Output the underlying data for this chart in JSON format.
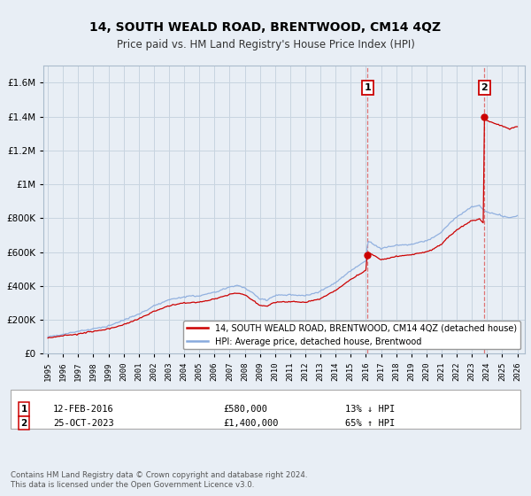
{
  "title": "14, SOUTH WEALD ROAD, BRENTWOOD, CM14 4QZ",
  "subtitle": "Price paid vs. HM Land Registry's House Price Index (HPI)",
  "ytick_values": [
    0,
    200000,
    400000,
    600000,
    800000,
    1000000,
    1200000,
    1400000,
    1600000
  ],
  "ylim": [
    0,
    1700000
  ],
  "xlim_start": 1994.7,
  "xlim_end": 2026.5,
  "sale1_x": 2016.12,
  "sale1_y": 580000,
  "sale1_label": "1",
  "sale2_x": 2023.82,
  "sale2_y": 1400000,
  "sale2_label": "2",
  "legend_property": "14, SOUTH WEALD ROAD, BRENTWOOD, CM14 4QZ (detached house)",
  "legend_hpi": "HPI: Average price, detached house, Brentwood",
  "ann1_num": "1",
  "ann1_date": "12-FEB-2016",
  "ann1_price": "£580,000",
  "ann1_hpi": "13% ↓ HPI",
  "ann2_num": "2",
  "ann2_date": "25-OCT-2023",
  "ann2_price": "£1,400,000",
  "ann2_hpi": "65% ↑ HPI",
  "footer": "Contains HM Land Registry data © Crown copyright and database right 2024.\nThis data is licensed under the Open Government Licence v3.0.",
  "property_color": "#cc0000",
  "hpi_color": "#88aadd",
  "sale_dot_color": "#cc0000",
  "vline_color": "#dd6666",
  "bg_color": "#e8eef5",
  "plot_bg_color": "#e8eef5",
  "grid_color": "#c8d4e0"
}
